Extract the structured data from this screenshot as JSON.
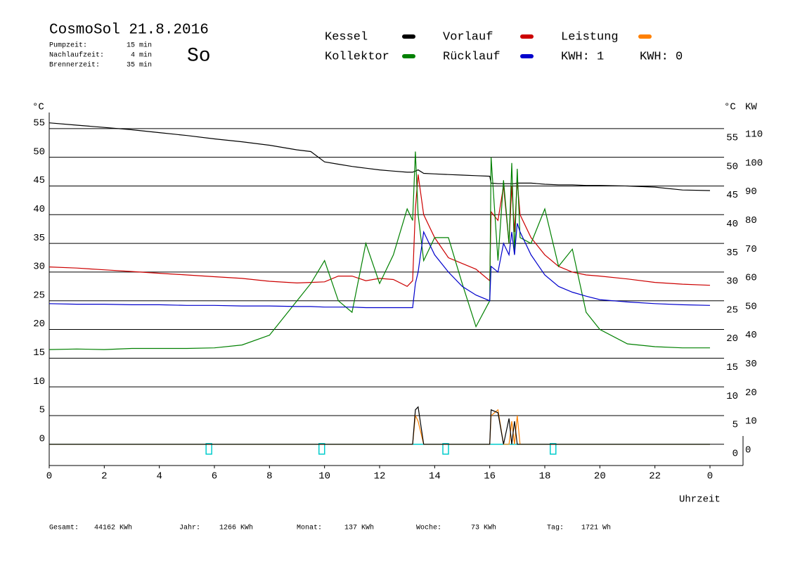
{
  "header": {
    "title": "CosmoSol 21.8.2016",
    "day": "So",
    "info": [
      {
        "label": "Pumpzeit:",
        "value": "15 min"
      },
      {
        "label": "Nachlaufzeit:",
        "value": "4 min"
      },
      {
        "label": "Brennerzeit:",
        "value": "35 min"
      }
    ]
  },
  "chart_data": {
    "type": "line",
    "y_label": "°C",
    "y2_label": "KW",
    "x_label": "Uhrzeit",
    "x": [
      0,
      1,
      2,
      3,
      4,
      5,
      6,
      7,
      8,
      9,
      9.5,
      10,
      10.5,
      11,
      11.5,
      12,
      12.5,
      13,
      13.2,
      13.3,
      13.4,
      13.6,
      14,
      14.5,
      15,
      15.5,
      16,
      16.05,
      16.3,
      16.5,
      16.7,
      16.8,
      16.9,
      17,
      17.1,
      17.5,
      18,
      18.5,
      19,
      19.5,
      20,
      21,
      22,
      23,
      24
    ],
    "series": [
      {
        "name": "Kessel",
        "color": "#000000",
        "values": [
          56,
          55.6,
          55.2,
          54.8,
          54.3,
          53.8,
          53.2,
          52.7,
          52.1,
          51.3,
          51,
          49.2,
          48.8,
          48.4,
          48.1,
          47.8,
          47.6,
          47.4,
          47.4,
          47.6,
          47.8,
          47.2,
          47.1,
          47,
          46.9,
          46.8,
          46.7,
          45.5,
          45.4,
          45.4,
          45.4,
          45.4,
          45.4,
          45.5,
          45.5,
          45.5,
          45.3,
          45.2,
          45.2,
          45.1,
          45.1,
          45,
          44.8,
          44.3,
          44.2
        ]
      },
      {
        "name": "Vorlauf",
        "color": "#cc0000",
        "values": [
          30.9,
          30.7,
          30.4,
          30.1,
          29.8,
          29.5,
          29.2,
          28.9,
          28.4,
          28.1,
          28.2,
          28.3,
          29.3,
          29.3,
          28.5,
          28.9,
          28.7,
          27.5,
          28.5,
          41,
          47,
          40,
          36,
          32.5,
          31.5,
          30.5,
          28.5,
          40.5,
          39,
          45,
          35,
          45,
          37,
          46,
          40,
          36,
          33,
          31,
          30,
          29.5,
          29.3,
          28.8,
          28.2,
          27.9,
          27.7
        ]
      },
      {
        "name": "Leistung",
        "color": "#ff8000",
        "axis": "y2",
        "values": [
          0,
          0,
          0,
          0,
          0,
          0,
          0,
          0,
          0,
          0,
          0,
          0,
          0,
          0,
          0,
          0,
          0,
          0,
          0,
          10,
          8,
          0,
          0,
          0,
          0,
          0,
          0,
          10,
          12,
          0,
          0,
          8,
          0,
          10,
          0,
          0,
          0,
          0,
          0,
          0,
          0,
          0,
          0,
          0,
          0
        ]
      },
      {
        "name": "Kollektor",
        "color": "#008000",
        "values": [
          16.5,
          16.6,
          16.5,
          16.7,
          16.7,
          16.7,
          16.8,
          17.3,
          19,
          25,
          28,
          32,
          25,
          23,
          35,
          28,
          33,
          41,
          39,
          51,
          40,
          32,
          36,
          36,
          28,
          20.5,
          25,
          50,
          32,
          46,
          35,
          49,
          33,
          48,
          36,
          35,
          41,
          31,
          34,
          23,
          20,
          17.5,
          17,
          16.8,
          16.8
        ]
      },
      {
        "name": "Rücklauf",
        "color": "#0000cc",
        "values": [
          24.5,
          24.4,
          24.4,
          24.3,
          24.3,
          24.2,
          24.2,
          24.1,
          24.1,
          24,
          24,
          23.9,
          23.9,
          23.9,
          23.8,
          23.8,
          23.8,
          23.8,
          23.8,
          28,
          30,
          37,
          33,
          30,
          27.5,
          26,
          25,
          31,
          30,
          35,
          33,
          37,
          33,
          38.5,
          37,
          33,
          29.5,
          27.5,
          26.5,
          25.8,
          25.2,
          24.8,
          24.5,
          24.3,
          24.2
        ]
      },
      {
        "color": "#000000",
        "values": [
          0,
          0,
          0,
          0,
          0,
          0,
          0,
          0,
          0,
          0,
          0,
          0,
          0,
          0,
          0,
          0,
          0,
          0,
          0,
          6,
          6.5,
          0,
          0,
          0,
          0,
          0,
          0,
          6,
          5.5,
          0,
          4.5,
          0,
          4,
          0,
          0,
          0,
          0,
          0,
          0,
          0,
          0,
          0,
          0,
          0,
          0
        ]
      }
    ],
    "events": {
      "color": "#00cccc",
      "x": [
        5.8,
        9.9,
        14.4,
        18.3
      ]
    },
    "kwh": [
      {
        "text": "KWH: 1",
        "color": "#e08a1e"
      },
      {
        "text": "KWH: 0",
        "color": "#800080"
      }
    ],
    "xlim": [
      0,
      24
    ],
    "xticks": [
      0,
      2,
      4,
      6,
      8,
      10,
      12,
      14,
      16,
      18,
      20,
      22,
      {
        "value": 24,
        "label": "0"
      }
    ],
    "ylim": [
      -3.7,
      57.8
    ],
    "yticks": [
      0,
      5,
      10,
      15,
      20,
      25,
      30,
      35,
      40,
      45,
      50,
      55
    ],
    "y2lim": [
      -7.4,
      115.6
    ],
    "y2ticks": [
      0,
      10,
      20,
      30,
      40,
      50,
      60,
      70,
      80,
      90,
      100,
      110
    ],
    "y2color": "#e08a1e",
    "grid": true
  },
  "footer": [
    {
      "label": "Gesamt:",
      "value": "44162 KWh"
    },
    {
      "label": "Jahr:",
      "value": "1266 KWh"
    },
    {
      "label": "Monat:",
      "value": "137 KWh"
    },
    {
      "label": "Woche:",
      "value": "73 KWh"
    },
    {
      "label": "Tag:",
      "value": "1721 Wh"
    }
  ]
}
